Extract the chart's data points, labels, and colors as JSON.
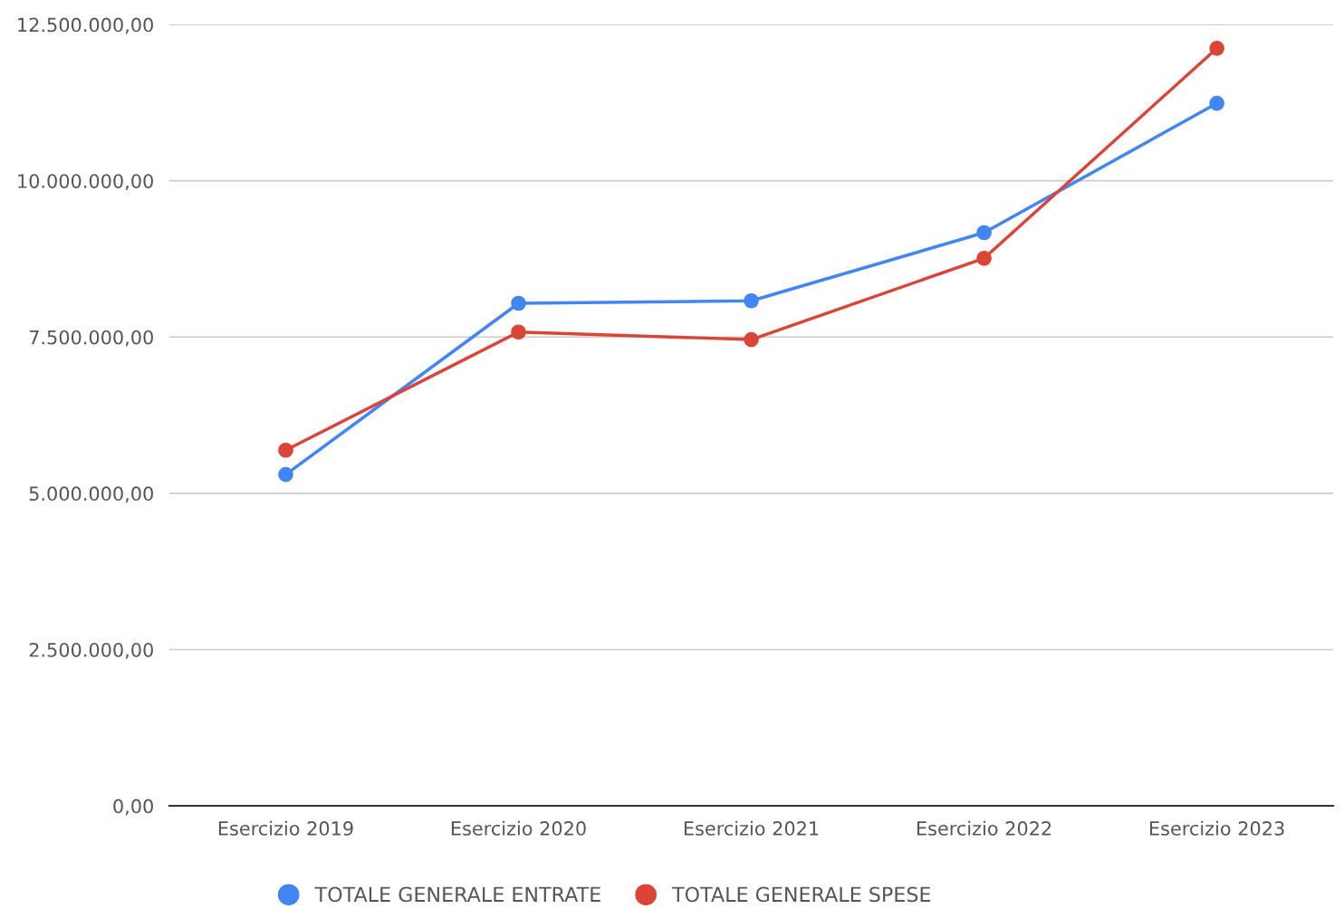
{
  "chart_data": {
    "type": "line",
    "categories": [
      "Esercizio 2019",
      "Esercizio 2020",
      "Esercizio 2021",
      "Esercizio 2022",
      "Esercizio 2023"
    ],
    "series": [
      {
        "name": "TOTALE GENERALE ENTRATE",
        "color": "#4285f4",
        "values": [
          5300000,
          8040000,
          8080000,
          9170000,
          11240000
        ]
      },
      {
        "name": "TOTALE GENERALE SPESE",
        "color": "#db4437",
        "values": [
          5690000,
          7580000,
          7460000,
          8760000,
          12120000
        ]
      }
    ],
    "ylim": [
      0,
      12500000
    ],
    "yticks": [
      {
        "value": 0,
        "label": "0,00"
      },
      {
        "value": 2500000,
        "label": "2.500.000,00"
      },
      {
        "value": 5000000,
        "label": "5.000.000,00"
      },
      {
        "value": 7500000,
        "label": "7.500.000,00"
      },
      {
        "value": 10000000,
        "label": "10.000.000,00"
      },
      {
        "value": 12500000,
        "label": "12.500.000,00"
      }
    ],
    "grid": "y",
    "legend": "bottom",
    "marker": "circle",
    "line_style": "solid"
  }
}
